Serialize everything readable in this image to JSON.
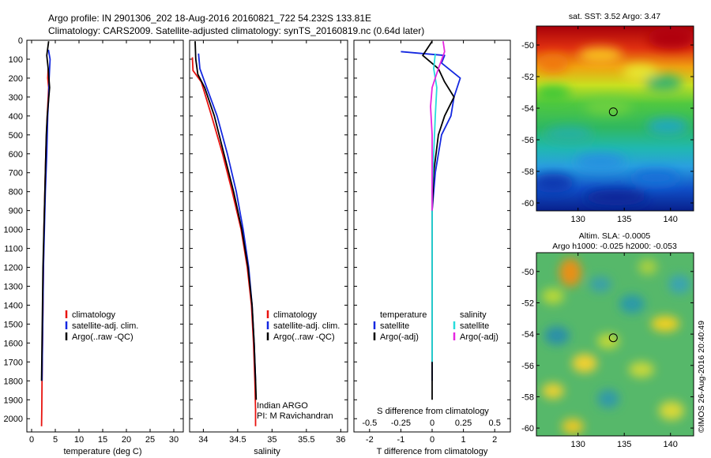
{
  "header": {
    "line1": "Argo profile: IN 2901306_202 18-Aug-2016 20160821_722 54.232S 133.81E",
    "line2": "Climatology: CARS2009. Satellite-adjusted climatology: synTS_20160819.nc (0.64d later)"
  },
  "colors": {
    "climatology": "#e8130f",
    "satellite": "#1428e0",
    "argo": "#000000",
    "cyan": "#27dcdc",
    "magenta": "#e626e0"
  },
  "chart_data": [
    {
      "type": "line",
      "panel": "temperature",
      "xlabel": "temperature (deg C)",
      "ylabel": "",
      "xlim": [
        -1,
        32
      ],
      "ylim": [
        2070,
        0
      ],
      "xticks": [
        0,
        5,
        10,
        15,
        20,
        25,
        30
      ],
      "yticks": [
        0,
        100,
        200,
        300,
        400,
        500,
        600,
        700,
        800,
        900,
        1000,
        1100,
        1200,
        1300,
        1400,
        1500,
        1600,
        1700,
        1800,
        1900,
        2000
      ],
      "legend": [
        "climatology",
        "satellite-adj. clim.",
        "Argo(..raw -QC)"
      ],
      "series": [
        {
          "name": "climatology",
          "color": "#e8130f",
          "x": [
            3.5,
            3.4,
            3.6,
            3.3,
            3.0,
            2.8,
            2.6,
            2.5,
            2.4,
            2.3,
            2.2,
            2.15,
            2.1
          ],
          "y": [
            150,
            200,
            250,
            400,
            600,
            800,
            1000,
            1200,
            1400,
            1600,
            1800,
            1950,
            2040
          ]
        },
        {
          "name": "satellite-adj. clim.",
          "color": "#1428e0",
          "x": [
            3.55,
            3.9,
            3.7,
            3.6,
            3.4,
            3.2,
            2.9,
            2.7,
            2.5,
            2.4,
            2.3,
            2.2
          ],
          "y": [
            50,
            100,
            200,
            300,
            400,
            600,
            800,
            1000,
            1200,
            1400,
            1600,
            1800
          ]
        },
        {
          "name": "Argo(..raw -QC)",
          "color": "#000000",
          "x": [
            3.6,
            3.2,
            3.5,
            3.8,
            3.3,
            3.1,
            3.0,
            2.8,
            2.6,
            2.4,
            2.3,
            2.2,
            2.1
          ],
          "y": [
            5,
            80,
            150,
            250,
            400,
            500,
            600,
            800,
            1000,
            1200,
            1400,
            1600,
            1800
          ]
        }
      ]
    },
    {
      "type": "line",
      "panel": "salinity",
      "xlabel": "salinity",
      "ylabel": "",
      "xlim": [
        33.8,
        36.1
      ],
      "ylim": [
        2070,
        0
      ],
      "xticks": [
        34,
        34.5,
        35,
        35.5,
        36
      ],
      "xticklabels": [
        "34",
        "34.5",
        "35",
        "35.5",
        "36"
      ],
      "legend": [
        "climatology",
        "satellite-adj. clim.",
        "Argo(..raw -QC)"
      ],
      "annotations": [
        "Indian ARGO",
        "PI: M Ravichandran"
      ],
      "series": [
        {
          "name": "climatology",
          "color": "#e8130f",
          "x": [
            33.84,
            33.85,
            33.97,
            34.12,
            34.28,
            34.42,
            34.55,
            34.64,
            34.7,
            34.73,
            34.75,
            34.76,
            34.76
          ],
          "y": [
            90,
            160,
            220,
            400,
            600,
            800,
            1000,
            1200,
            1400,
            1600,
            1800,
            1950,
            2040
          ]
        },
        {
          "name": "satellite-adj. clim.",
          "color": "#1428e0",
          "x": [
            33.93,
            33.95,
            34.05,
            34.2,
            34.35,
            34.48,
            34.58,
            34.66,
            34.71,
            34.74,
            34.76
          ],
          "y": [
            70,
            150,
            250,
            400,
            600,
            800,
            1000,
            1200,
            1400,
            1600,
            1800
          ]
        },
        {
          "name": "Argo(..raw -QC)",
          "color": "#000000",
          "x": [
            33.88,
            33.89,
            33.92,
            34.02,
            34.16,
            34.3,
            34.44,
            34.56,
            34.65,
            34.71,
            34.74,
            34.76,
            34.77
          ],
          "y": [
            5,
            100,
            180,
            250,
            400,
            600,
            800,
            1000,
            1200,
            1400,
            1600,
            1800,
            1900
          ]
        }
      ]
    },
    {
      "type": "line",
      "panel": "difference",
      "xlabel": "T difference from climatology",
      "ylabel": "",
      "xlim": [
        -2.5,
        2.5
      ],
      "ylim": [
        2070,
        0
      ],
      "xticks": [
        -2,
        -1,
        0,
        1,
        2
      ],
      "top_axis_label": "S difference from climatology",
      "top_ticklabels": [
        "-0.5",
        "-0.25",
        "0",
        "0.25",
        "0.5"
      ],
      "legend_headers": [
        "temperature",
        "salinity"
      ],
      "legend": [
        "satellite",
        "Argo(-adj)",
        "satellite",
        "Argo(-adj)"
      ],
      "series": [
        {
          "name": "satellite",
          "quantity": "temperature",
          "color": "#1428e0",
          "x": [
            -1.0,
            -0.3,
            0.4,
            0.3,
            0.9,
            0.7,
            0.6,
            0.3,
            0.1,
            0.0,
            0.0,
            0.0,
            0.0,
            0.0
          ],
          "y": [
            60,
            70,
            80,
            120,
            200,
            300,
            400,
            500,
            700,
            900,
            1100,
            1400,
            1600,
            1800
          ]
        },
        {
          "name": "Argo(-adj)",
          "quantity": "temperature",
          "color": "#000000",
          "x": [
            0.0,
            -0.3,
            0.2,
            0.4,
            0.7,
            0.4,
            0.2,
            0.05,
            0.0,
            0.0,
            0.0,
            0.0,
            0.0
          ],
          "y": [
            5,
            80,
            150,
            220,
            300,
            400,
            500,
            700,
            900,
            1100,
            1400,
            1700,
            1900
          ]
        },
        {
          "name": "satellite",
          "quantity": "salinity",
          "color": "#27dcdc",
          "x": [
            0.1,
            0.05,
            0.15,
            0.1,
            0.05,
            0.0,
            0.0,
            0.0,
            0.0,
            0.0
          ],
          "y": [
            70,
            150,
            250,
            400,
            600,
            800,
            1000,
            1200,
            1400,
            1700
          ]
        },
        {
          "name": "Argo(-adj)",
          "quantity": "salinity",
          "color": "#e626e0",
          "x": [
            0.35,
            0.4,
            0.2,
            0.0,
            -0.05,
            0.0,
            0.0,
            0.0
          ],
          "y": [
            5,
            60,
            150,
            250,
            350,
            500,
            700,
            900
          ]
        }
      ]
    },
    {
      "type": "heatmap",
      "panel": "sst-map",
      "title": "sat. SST: 3.52 Argo: 3.47",
      "xlim": [
        125.5,
        142.5
      ],
      "ylim": [
        -60.5,
        -48.8
      ],
      "xticks": [
        130,
        135,
        140
      ],
      "yticks": [
        -50,
        -52,
        -54,
        -56,
        -58,
        -60
      ],
      "marker": {
        "lon": 133.81,
        "lat": -54.232
      }
    },
    {
      "type": "heatmap",
      "panel": "sla-map",
      "title": "Altim. SLA: -0.0005",
      "subtitle": "Argo h1000: -0.025 h2000: -0.053",
      "xlim": [
        125.5,
        142.5
      ],
      "ylim": [
        -60.5,
        -48.8
      ],
      "xticks": [
        130,
        135,
        140
      ],
      "yticks": [
        -50,
        -52,
        -54,
        -56,
        -58,
        -60
      ],
      "marker": {
        "lon": 133.81,
        "lat": -54.232
      }
    }
  ],
  "footer": {
    "credit": "©IMOS 26-Aug-2016 20:40:49"
  }
}
